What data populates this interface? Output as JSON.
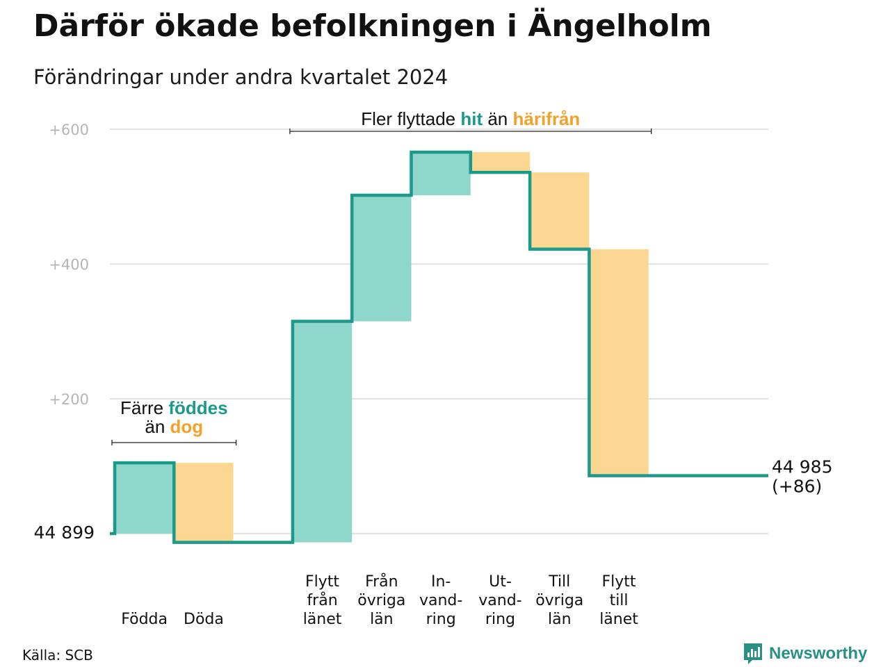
{
  "title": "Därför ökade befolkningen i Ängelholm",
  "subtitle": "Förändringar under andra kvartalet 2024",
  "source": "Källa: SCB",
  "brand": {
    "name": "Newsworthy",
    "icon": "newsworthy-logo-icon"
  },
  "colors": {
    "increase": "#8fd6cb",
    "decrease": "#fbd792",
    "line": "#1b9a8a",
    "accent_in": "#1b9a8a",
    "accent_out": "#f0a22a",
    "grid": "#e2e2e2"
  },
  "chart_data": {
    "type": "waterfall",
    "start_label": "44  899",
    "start_value": 44899,
    "end_label": "44 985",
    "end_change_label": "(+86)",
    "end_value": 44985,
    "y_ticks": [
      {
        "value": 600,
        "label": "+600"
      },
      {
        "value": 400,
        "label": "+400"
      },
      {
        "value": 200,
        "label": "+200"
      }
    ],
    "ylim": [
      0,
      600
    ],
    "steps": [
      {
        "label": [
          "Födda"
        ],
        "change": 105,
        "direction": "in"
      },
      {
        "label": [
          "Döda"
        ],
        "change": -118,
        "direction": "out"
      },
      {
        "label": [],
        "change": 0,
        "direction": "none"
      },
      {
        "label": [
          "Flytt",
          "från",
          "länet"
        ],
        "change": 328,
        "direction": "in"
      },
      {
        "label": [
          "Från",
          "övriga",
          "län"
        ],
        "change": 187,
        "direction": "in"
      },
      {
        "label": [
          "In-",
          "vand-",
          "ring"
        ],
        "change": 64,
        "direction": "in"
      },
      {
        "label": [
          "Ut-",
          "vand-",
          "ring"
        ],
        "change": -30,
        "direction": "out"
      },
      {
        "label": [
          "Till",
          "övriga",
          "län"
        ],
        "change": -114,
        "direction": "out"
      },
      {
        "label": [
          "Flytt",
          "till",
          "länet"
        ],
        "change": -336,
        "direction": "out"
      },
      {
        "label": [],
        "change": 0,
        "direction": "none"
      }
    ],
    "annotations": [
      {
        "text_before": "Färre",
        "text_in": "föddes",
        "text_mid": "än",
        "text_out": "dog",
        "span": [
          0,
          1
        ]
      },
      {
        "text_before": "Fler flyttade",
        "text_in": "hit",
        "text_mid": "än",
        "text_out": "härifrån",
        "span": [
          3,
          8
        ]
      }
    ]
  }
}
